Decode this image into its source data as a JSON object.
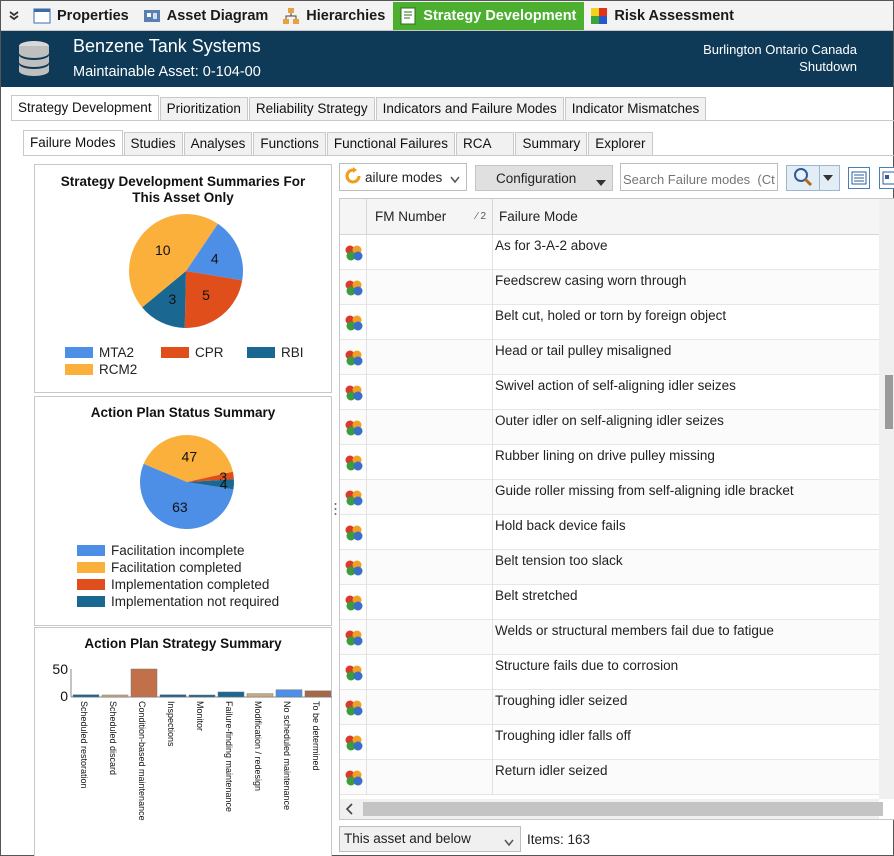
{
  "toolbar": {
    "tabs": [
      {
        "label": "Properties",
        "icon": "properties-icon"
      },
      {
        "label": "Asset Diagram",
        "icon": "asset-diagram-icon"
      },
      {
        "label": "Hierarchies",
        "icon": "hierarchy-icon"
      },
      {
        "label": "Strategy Development",
        "icon": "strategy-icon",
        "active": true
      },
      {
        "label": "Risk Assessment",
        "icon": "risk-matrix-icon"
      }
    ]
  },
  "header": {
    "title": "Benzene Tank Systems",
    "subtitle": "Maintainable Asset:  0-104-00",
    "location": "Burlington Ontario Canada",
    "status": "Shutdown",
    "bg_color": "#0e3a58"
  },
  "tabs_level1": [
    "Strategy Development",
    "Prioritization",
    "Reliability Strategy",
    "Indicators and Failure Modes",
    "Indicator Mismatches"
  ],
  "tabs_level2": [
    "Failure Modes",
    "Studies",
    "Analyses",
    "Functions",
    "Functional Failures",
    "RCA",
    "Summary",
    "Explorer"
  ],
  "left": {
    "summary_chart": {
      "title_line1": "Strategy Development Summaries For",
      "title_line2": "This Asset Only"
    },
    "status_chart": {
      "title": "Action Plan Status Summary"
    },
    "strategy_chart": {
      "title": "Action Plan Strategy Summary"
    }
  },
  "chart_data": [
    {
      "type": "pie",
      "title": "Strategy Development Summaries For This Asset Only",
      "labels": [
        "MTA2",
        "CPR",
        "RBI",
        "RCM2"
      ],
      "values": [
        4,
        5,
        3,
        10
      ],
      "colors": [
        "#4d8fe6",
        "#e04e1b",
        "#1a6792",
        "#fbb03b"
      ],
      "legend": "bottom"
    },
    {
      "type": "pie",
      "title": "Action Plan Status Summary",
      "labels": [
        "Facilitation incomplete",
        "Facilitation completed",
        "Implementation completed",
        "Implementation not required"
      ],
      "values": [
        63,
        47,
        3,
        4
      ],
      "colors": [
        "#4d8fe6",
        "#fbb03b",
        "#e04e1b",
        "#1a6792"
      ],
      "legend": "bottom"
    },
    {
      "type": "bar",
      "title": "Action Plan Strategy Summary",
      "categories": [
        "Scheduled restoration",
        "Scheduled discard",
        "Condition-based maintenance",
        "Inspections",
        "Monitor",
        "Failure-finding maintenance",
        "Modification / redesign",
        "No scheduled maintenance",
        "To be determined"
      ],
      "values": [
        4,
        1,
        50,
        4,
        1,
        9,
        6,
        13,
        11
      ],
      "colors": [
        "#1a6792",
        "#c8a882",
        "#c2704a",
        "#1a6792",
        "#1a6792",
        "#1a6792",
        "#c8a882",
        "#4d8fe6",
        "#a86848"
      ],
      "yticks": [
        "50",
        "0"
      ],
      "ylim": [
        0,
        50
      ]
    }
  ],
  "right": {
    "dropdown_value": "ailure modes",
    "config_label": "Configuration",
    "search_placeholder": "Search Failure modes  (Ct",
    "columns": {
      "fm_number": "FM Number",
      "sort_indicator": "2",
      "failure_mode": "Failure Mode"
    },
    "rows": [
      "As for 3-A-2 above",
      "Feedscrew casing worn through",
      "Belt cut, holed or torn by foreign object",
      "Head or tail pulley misaligned",
      "Swivel action of self-aligning idler seizes",
      "Outer idler on self-aligning idler seizes",
      "Rubber lining on drive pulley missing",
      "Guide roller missing from self-aligning idle bracket",
      "Hold back device fails",
      "Belt tension too slack",
      "Belt stretched",
      "Welds or structural members fail due to fatigue",
      "Structure fails due to corrosion",
      "Troughing idler seized",
      "Troughing idler falls off",
      "Return idler seized"
    ],
    "footer_scope": "This asset and below",
    "items_count": "Items: 163"
  }
}
